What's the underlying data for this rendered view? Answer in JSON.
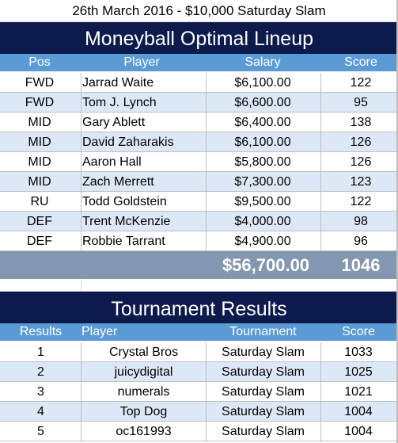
{
  "title": "26th March 2016 - $10,000 Saturday Slam",
  "lineup": {
    "heading": "Moneyball Optimal Lineup",
    "columns": [
      "Pos",
      "Player",
      "Salary",
      "Score"
    ],
    "rows": [
      {
        "pos": "FWD",
        "player": "Jarrad Waite",
        "salary": "$6,100.00",
        "score": "122"
      },
      {
        "pos": "FWD",
        "player": "Tom J. Lynch",
        "salary": "$6,600.00",
        "score": "95"
      },
      {
        "pos": "MID",
        "player": "Gary Ablett",
        "salary": "$6,400.00",
        "score": "138"
      },
      {
        "pos": "MID",
        "player": "David Zaharakis",
        "salary": "$6,100.00",
        "score": "126"
      },
      {
        "pos": "MID",
        "player": "Aaron Hall",
        "salary": "$5,800.00",
        "score": "126"
      },
      {
        "pos": "MID",
        "player": "Zach Merrett",
        "salary": "$7,300.00",
        "score": "123"
      },
      {
        "pos": "RU",
        "player": "Todd Goldstein",
        "salary": "$9,500.00",
        "score": "122"
      },
      {
        "pos": "DEF",
        "player": "Trent McKenzie",
        "salary": "$4,000.00",
        "score": "98"
      },
      {
        "pos": "DEF",
        "player": "Robbie Tarrant",
        "salary": "$4,900.00",
        "score": "96"
      }
    ],
    "total_salary": "$56,700.00",
    "total_score": "1046"
  },
  "results": {
    "heading": "Tournament Results",
    "columns": [
      "Results",
      "Player",
      "Tournament",
      "Score"
    ],
    "rows": [
      {
        "rank": "1",
        "player": "Crystal Bros",
        "tournament": "Saturday Slam",
        "score": "1033"
      },
      {
        "rank": "2",
        "player": "juicydigital",
        "tournament": "Saturday Slam",
        "score": "1025"
      },
      {
        "rank": "3",
        "player": "numerals",
        "tournament": "Saturday Slam",
        "score": "1021"
      },
      {
        "rank": "4",
        "player": "Top Dog",
        "tournament": "Saturday Slam",
        "score": "1004"
      },
      {
        "rank": "5",
        "player": "oc161993",
        "tournament": "Saturday Slam",
        "score": "1004"
      }
    ]
  },
  "colors": {
    "band": "#0d1b4c",
    "header": "#5b9bd5",
    "stripe": "#dde8f6",
    "total": "#8497b0"
  }
}
